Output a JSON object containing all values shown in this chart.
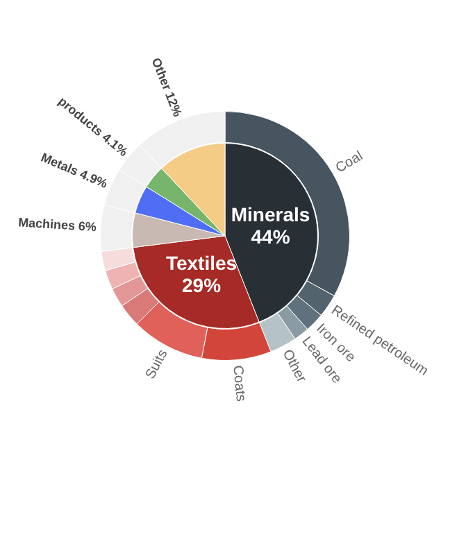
{
  "chart_data": [
    {
      "type": "pie",
      "categories": [
        "Minerals",
        "Textiles",
        "Machines",
        "Metals",
        "products",
        "Other"
      ],
      "values": [
        44,
        29,
        6,
        4.9,
        4.1,
        12
      ],
      "colors": [
        "#283036",
        "#a62a25",
        "#c9b9b3",
        "#4f6ef5",
        "#76b56b",
        "#f5cc86"
      ],
      "value_labels": [
        "44%",
        "29%",
        "6%",
        "4.9%",
        "4.1%",
        "12%"
      ]
    },
    {
      "type": "donut",
      "categories": [
        "Coal",
        "Refined petroleum",
        "Iron ore",
        "Lead ore",
        "Other",
        "Coats",
        "Suits",
        null,
        null,
        null,
        null,
        null,
        null,
        null,
        null
      ],
      "values": [
        33,
        3,
        2.5,
        2,
        3.5,
        9,
        9.5,
        3,
        2.5,
        2.5,
        2.5,
        6,
        4.9,
        4.1,
        12
      ],
      "colors": [
        "#46555f",
        "#52636e",
        "#5f717c",
        "#8a9ba4",
        "#b5c2c8",
        "#d2453b",
        "#e0605a",
        "#d97a78",
        "#e39796",
        "#eeb3b2",
        "#f7dcdc",
        "#f0f0f0",
        "#f0f0f0",
        "#f0f0f0",
        "#f0f0f0"
      ]
    }
  ]
}
